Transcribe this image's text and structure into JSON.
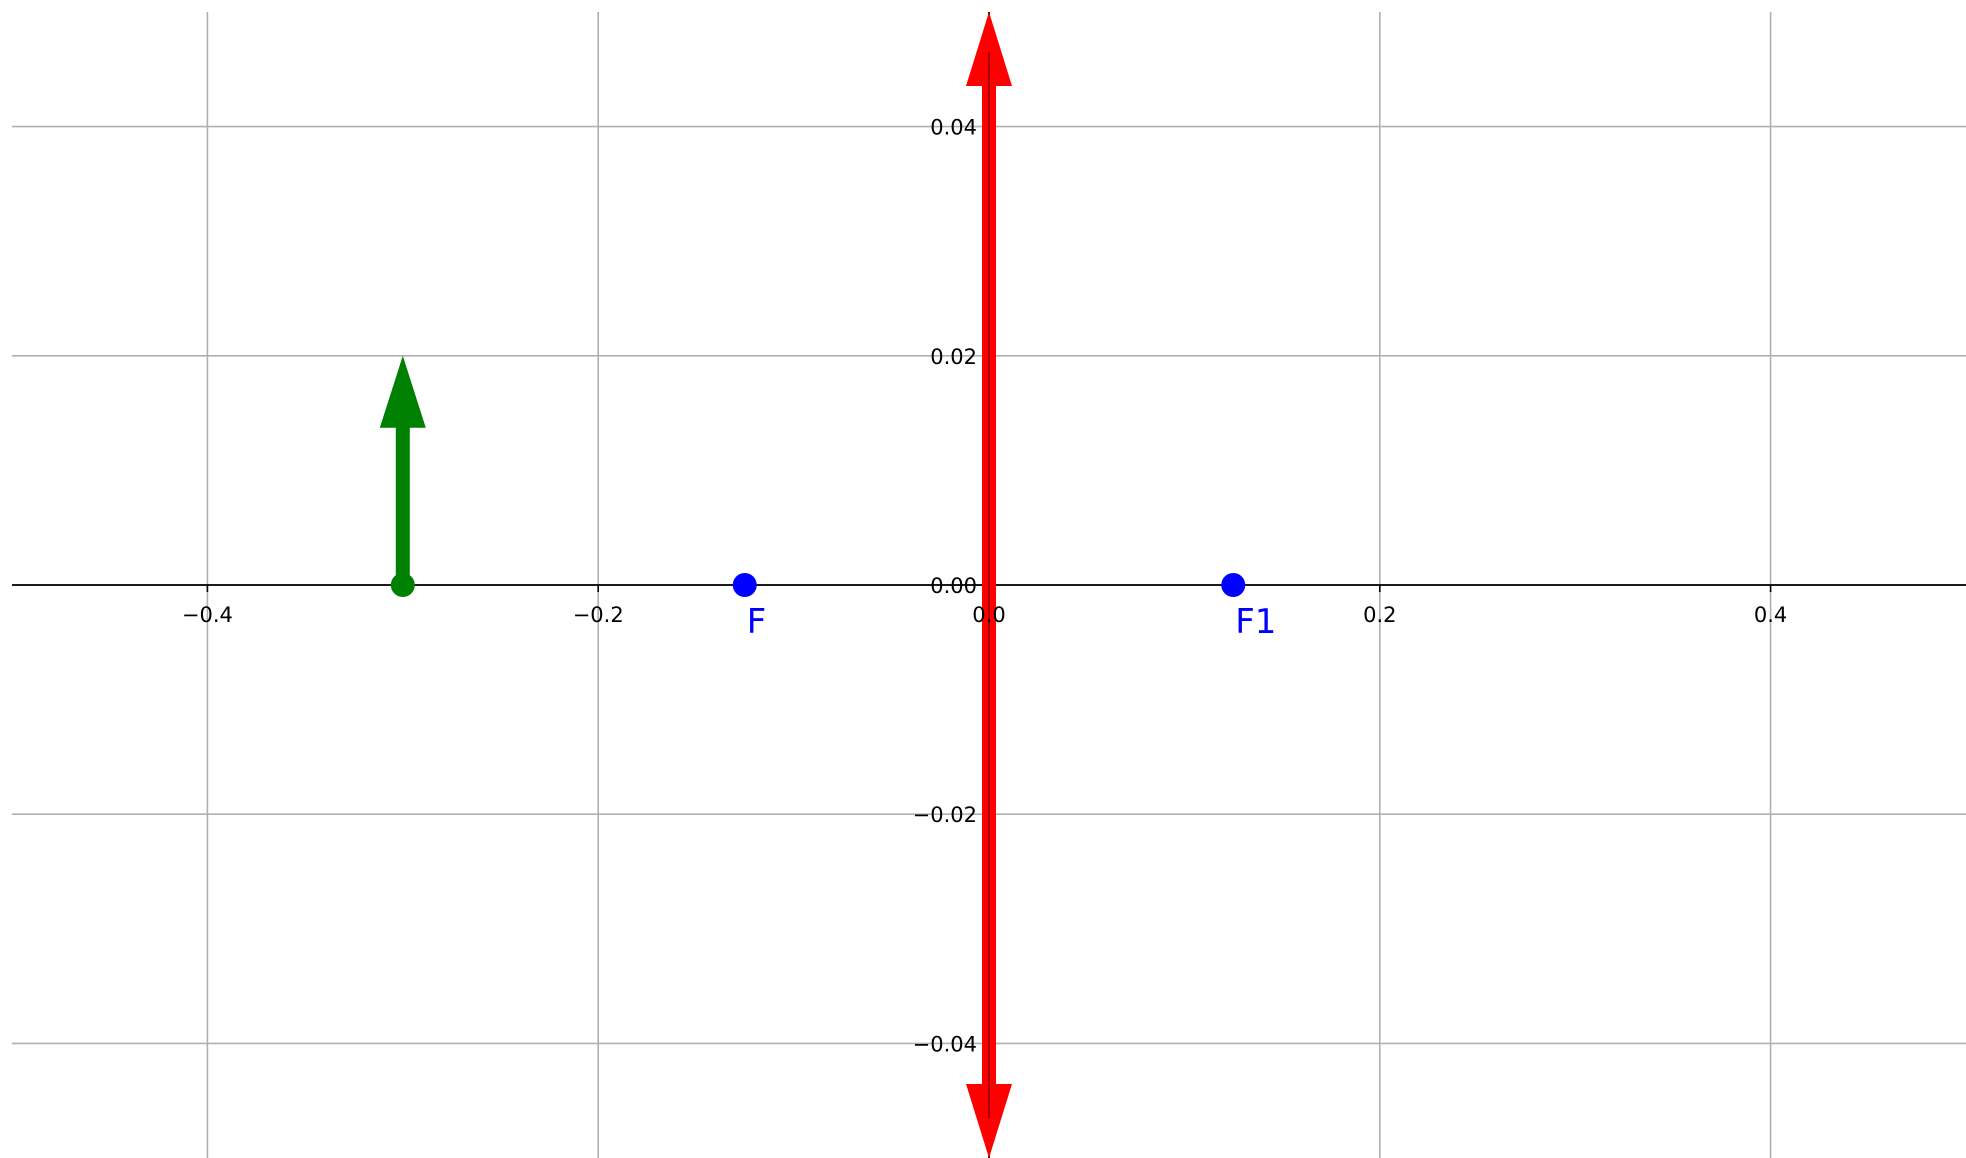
{
  "chart_data": {
    "type": "scatter",
    "title": "",
    "xlabel": "",
    "ylabel": "",
    "xlim": [
      -0.5,
      0.5
    ],
    "ylim": [
      -0.05,
      0.05
    ],
    "grid": true,
    "spines": "centered at origin",
    "x_ticks": [
      {
        "value": -0.4,
        "label": "−0.4"
      },
      {
        "value": -0.2,
        "label": "−0.2"
      },
      {
        "value": 0.0,
        "label": "0.0"
      },
      {
        "value": 0.2,
        "label": "0.2"
      },
      {
        "value": 0.4,
        "label": "0.4"
      }
    ],
    "y_ticks": [
      {
        "value": 0.04,
        "label": "0.04"
      },
      {
        "value": 0.02,
        "label": "0.02"
      },
      {
        "value": 0.0,
        "label": "0.00"
      },
      {
        "value": -0.02,
        "label": "−0.02"
      },
      {
        "value": -0.04,
        "label": "−0.04"
      }
    ],
    "points": [
      {
        "label": "F",
        "x": -0.125,
        "y": 0.0,
        "color": "#0000ff"
      },
      {
        "label": "F1",
        "x": 0.125,
        "y": 0.0,
        "color": "#0000ff"
      }
    ],
    "lens": {
      "x": 0.0,
      "y_start": -0.05,
      "y_end": 0.05,
      "color": "#ff0000",
      "double_headed": true
    },
    "object_arrow": {
      "x": -0.3,
      "y_start": 0.0,
      "y_end": 0.02,
      "color": "#008000"
    }
  }
}
